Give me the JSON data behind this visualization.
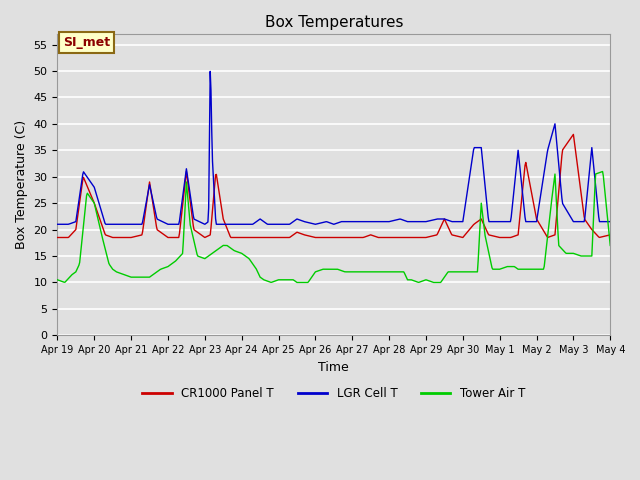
{
  "title": "Box Temperatures",
  "xlabel": "Time",
  "ylabel": "Box Temperature (C)",
  "ylim": [
    0,
    57
  ],
  "yticks": [
    0,
    5,
    10,
    15,
    20,
    25,
    30,
    35,
    40,
    45,
    50,
    55
  ],
  "x_labels": [
    "Apr 19",
    "Apr 20",
    "Apr 21",
    "Apr 22",
    "Apr 23",
    "Apr 24",
    "Apr 25",
    "Apr 26",
    "Apr 27",
    "Apr 28",
    "Apr 29",
    "Apr 30",
    "May 1",
    "May 2",
    "May 3",
    "May 4"
  ],
  "background_color": "#e0e0e0",
  "plot_bg_color": "#e0e0e0",
  "grid_color": "#ffffff",
  "annotation_text": "SI_met",
  "annotation_bg": "#ffffc8",
  "annotation_border": "#8b6914",
  "legend": [
    {
      "label": "CR1000 Panel T",
      "color": "#cc0000"
    },
    {
      "label": "LGR Cell T",
      "color": "#0000cc"
    },
    {
      "label": "Tower Air T",
      "color": "#00cc00"
    }
  ],
  "cr1000_t": [
    0.0,
    0.3,
    0.5,
    0.7,
    1.0,
    1.3,
    1.5,
    1.7,
    2.0,
    2.3,
    2.5,
    2.7,
    3.0,
    3.3,
    3.5,
    3.7,
    4.0,
    4.15,
    4.3,
    4.5,
    4.7,
    5.0,
    5.3,
    5.5,
    5.7,
    6.0,
    6.3,
    6.5,
    6.7,
    7.0,
    7.3,
    7.5,
    7.7,
    8.0,
    8.3,
    8.5,
    8.7,
    9.0,
    9.3,
    9.5,
    9.7,
    10.0,
    10.3,
    10.5,
    10.7,
    11.0,
    11.3,
    11.5,
    11.7,
    12.0,
    12.3,
    12.5,
    12.7,
    13.0,
    13.3,
    13.5,
    13.7,
    14.0,
    14.3,
    14.5,
    14.7,
    15.0
  ],
  "cr1000_y": [
    18.5,
    18.5,
    20.0,
    30.0,
    25.0,
    19.0,
    18.5,
    18.5,
    18.5,
    19.0,
    29.0,
    20.0,
    18.5,
    18.5,
    31.0,
    20.0,
    18.5,
    19.0,
    31.0,
    22.0,
    18.5,
    18.5,
    18.5,
    18.5,
    18.5,
    18.5,
    18.5,
    19.5,
    19.0,
    18.5,
    18.5,
    18.5,
    18.5,
    18.5,
    18.5,
    19.0,
    18.5,
    18.5,
    18.5,
    18.5,
    18.5,
    18.5,
    19.0,
    22.0,
    19.0,
    18.5,
    21.0,
    22.0,
    19.0,
    18.5,
    18.5,
    19.0,
    33.0,
    22.0,
    18.5,
    19.0,
    35.0,
    38.0,
    22.0,
    20.0,
    18.5,
    19.0
  ],
  "lgr_t": [
    0.0,
    0.3,
    0.5,
    0.7,
    1.0,
    1.3,
    1.5,
    1.7,
    2.0,
    2.3,
    2.5,
    2.7,
    3.0,
    3.3,
    3.5,
    3.7,
    4.0,
    4.1,
    4.15,
    4.2,
    4.3,
    4.5,
    4.7,
    5.0,
    5.3,
    5.5,
    5.7,
    6.0,
    6.3,
    6.5,
    6.7,
    7.0,
    7.3,
    7.5,
    7.7,
    8.0,
    8.3,
    8.5,
    8.7,
    9.0,
    9.3,
    9.5,
    9.7,
    10.0,
    10.3,
    10.5,
    10.7,
    11.0,
    11.3,
    11.5,
    11.7,
    12.0,
    12.3,
    12.5,
    12.7,
    13.0,
    13.3,
    13.5,
    13.7,
    14.0,
    14.3,
    14.5,
    14.7,
    15.0
  ],
  "lgr_y": [
    21.0,
    21.0,
    21.5,
    31.0,
    28.0,
    21.0,
    21.0,
    21.0,
    21.0,
    21.0,
    28.5,
    22.0,
    21.0,
    21.0,
    31.5,
    22.0,
    21.0,
    21.5,
    52.5,
    34.0,
    21.0,
    21.0,
    21.0,
    21.0,
    21.0,
    22.0,
    21.0,
    21.0,
    21.0,
    22.0,
    21.5,
    21.0,
    21.5,
    21.0,
    21.5,
    21.5,
    21.5,
    21.5,
    21.5,
    21.5,
    22.0,
    21.5,
    21.5,
    21.5,
    22.0,
    22.0,
    21.5,
    21.5,
    35.5,
    35.5,
    21.5,
    21.5,
    21.5,
    35.0,
    21.5,
    21.5,
    35.0,
    40.0,
    25.0,
    21.5,
    21.5,
    35.5,
    21.5,
    21.5
  ],
  "tower_t": [
    0.0,
    0.2,
    0.4,
    0.5,
    0.6,
    0.8,
    1.0,
    1.2,
    1.4,
    1.5,
    1.6,
    1.8,
    2.0,
    2.2,
    2.4,
    2.5,
    2.6,
    2.8,
    3.0,
    3.2,
    3.4,
    3.5,
    3.6,
    3.8,
    4.0,
    4.2,
    4.4,
    4.5,
    4.6,
    4.8,
    5.0,
    5.2,
    5.4,
    5.5,
    5.6,
    5.8,
    6.0,
    6.2,
    6.4,
    6.5,
    6.6,
    6.8,
    7.0,
    7.2,
    7.4,
    7.5,
    7.6,
    7.8,
    8.0,
    8.2,
    8.4,
    8.5,
    8.6,
    8.8,
    9.0,
    9.2,
    9.4,
    9.5,
    9.6,
    9.8,
    10.0,
    10.2,
    10.4,
    10.5,
    10.6,
    10.8,
    11.0,
    11.2,
    11.4,
    11.5,
    11.6,
    11.8,
    12.0,
    12.2,
    12.4,
    12.5,
    12.6,
    12.8,
    13.0,
    13.2,
    13.4,
    13.5,
    13.6,
    13.8,
    14.0,
    14.2,
    14.4,
    14.5,
    14.6,
    14.8,
    15.0
  ],
  "tower_y": [
    10.5,
    10.0,
    11.5,
    12.0,
    13.5,
    27.0,
    25.0,
    19.0,
    13.5,
    12.5,
    12.0,
    11.5,
    11.0,
    11.0,
    11.0,
    11.0,
    11.5,
    12.5,
    13.0,
    14.0,
    15.5,
    29.0,
    21.0,
    15.0,
    14.5,
    15.5,
    16.5,
    17.0,
    17.0,
    16.0,
    15.5,
    14.5,
    12.5,
    11.0,
    10.5,
    10.0,
    10.5,
    10.5,
    10.5,
    10.0,
    10.0,
    10.0,
    12.0,
    12.5,
    12.5,
    12.5,
    12.5,
    12.0,
    12.0,
    12.0,
    12.0,
    12.0,
    12.0,
    12.0,
    12.0,
    12.0,
    12.0,
    10.5,
    10.5,
    10.0,
    10.5,
    10.0,
    10.0,
    11.0,
    12.0,
    12.0,
    12.0,
    12.0,
    12.0,
    25.0,
    19.0,
    12.5,
    12.5,
    13.0,
    13.0,
    12.5,
    12.5,
    12.5,
    12.5,
    12.5,
    25.0,
    30.5,
    17.0,
    15.5,
    15.5,
    15.0,
    15.0,
    15.0,
    30.5,
    31.0,
    17.0
  ]
}
